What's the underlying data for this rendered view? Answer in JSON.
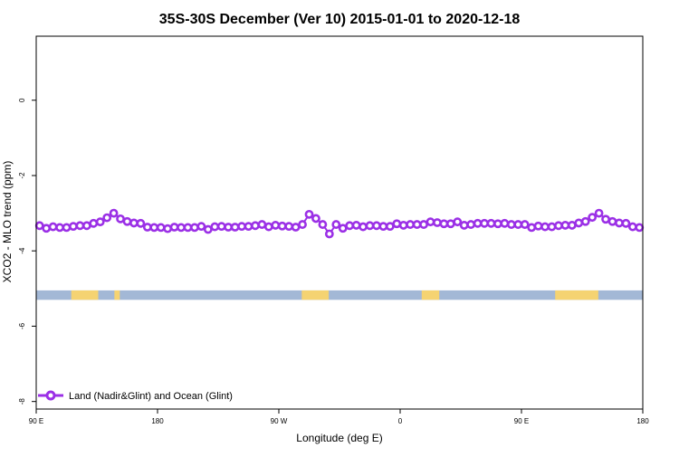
{
  "chart_data": {
    "type": "line",
    "title": "35S-30S December (Ver 10)   2015-01-01 to 2020-12-18",
    "xlabel": "Longitude (deg E)",
    "ylabel": "XCO2 - MLO trend (ppm)",
    "xlim": [
      90,
      540
    ],
    "ylim": [
      -8.2,
      1.7
    ],
    "x_ticks": [
      {
        "value": 90,
        "label": "90 E"
      },
      {
        "value": 180,
        "label": "180"
      },
      {
        "value": 270,
        "label": "90 W"
      },
      {
        "value": 360,
        "label": "0"
      },
      {
        "value": 450,
        "label": "90 E"
      },
      {
        "value": 540,
        "label": "180"
      }
    ],
    "y_ticks": [
      {
        "value": 0,
        "label": "0"
      },
      {
        "value": -2,
        "label": "-2"
      },
      {
        "value": -4,
        "label": "-4"
      },
      {
        "value": -6,
        "label": "-6"
      },
      {
        "value": -8,
        "label": "-8"
      }
    ],
    "land_ocean_strip": {
      "y_range": [
        -5.3,
        -5.05
      ],
      "ocean_color": "#a3b8d6",
      "land_color": "#f5d372",
      "land_spans": [
        [
          116,
          136
        ],
        [
          148,
          152
        ],
        [
          287,
          307
        ],
        [
          376,
          389
        ],
        [
          475,
          507
        ]
      ]
    },
    "legend": {
      "position": "bottom-left",
      "label": "Land (Nadir&Glint) and Ocean (Glint)"
    },
    "series": [
      {
        "name": "Land (Nadir&Glint) and Ocean (Glint)",
        "color": "#9b30e6",
        "x": [
          92.5,
          97.5,
          102.5,
          107.5,
          112.5,
          117.5,
          122.5,
          127.5,
          132.5,
          137.5,
          142.5,
          147.5,
          152.5,
          157.5,
          162.5,
          167.5,
          172.5,
          177.5,
          182.5,
          187.5,
          192.5,
          197.5,
          202.5,
          207.5,
          212.5,
          217.5,
          222.5,
          227.5,
          232.5,
          237.5,
          242.5,
          247.5,
          252.5,
          257.5,
          262.5,
          267.5,
          272.5,
          277.5,
          282.5,
          287.5,
          292.5,
          297.5,
          302.5,
          307.5,
          312.5,
          317.5,
          322.5,
          327.5,
          332.5,
          337.5,
          342.5,
          347.5,
          352.5,
          357.5,
          362.5,
          367.5,
          372.5,
          377.5,
          382.5,
          387.5,
          392.5,
          397.5,
          402.5,
          407.5,
          412.5,
          417.5,
          422.5,
          427.5,
          432.5,
          437.5,
          442.5,
          447.5,
          452.5,
          457.5,
          462.5,
          467.5,
          472.5,
          477.5,
          482.5,
          487.5,
          492.5,
          497.5,
          502.5,
          507.5,
          512.5,
          517.5,
          522.5,
          527.5,
          532.5,
          537.5
        ],
        "values": [
          -3.33,
          -3.4,
          -3.36,
          -3.38,
          -3.38,
          -3.35,
          -3.33,
          -3.33,
          -3.27,
          -3.23,
          -3.12,
          -3.0,
          -3.15,
          -3.22,
          -3.26,
          -3.27,
          -3.37,
          -3.38,
          -3.38,
          -3.41,
          -3.37,
          -3.38,
          -3.38,
          -3.38,
          -3.35,
          -3.43,
          -3.36,
          -3.35,
          -3.37,
          -3.37,
          -3.35,
          -3.35,
          -3.33,
          -3.3,
          -3.36,
          -3.32,
          -3.34,
          -3.35,
          -3.37,
          -3.3,
          -3.03,
          -3.14,
          -3.3,
          -3.55,
          -3.3,
          -3.4,
          -3.33,
          -3.32,
          -3.36,
          -3.33,
          -3.33,
          -3.35,
          -3.35,
          -3.28,
          -3.32,
          -3.3,
          -3.3,
          -3.3,
          -3.23,
          -3.25,
          -3.28,
          -3.28,
          -3.23,
          -3.32,
          -3.3,
          -3.27,
          -3.27,
          -3.27,
          -3.28,
          -3.27,
          -3.3,
          -3.3,
          -3.3,
          -3.38,
          -3.34,
          -3.36,
          -3.36,
          -3.33,
          -3.32,
          -3.32,
          -3.26,
          -3.22,
          -3.11,
          -3.0,
          -3.16,
          -3.22,
          -3.26,
          -3.27,
          -3.36,
          -3.38
        ]
      }
    ]
  }
}
